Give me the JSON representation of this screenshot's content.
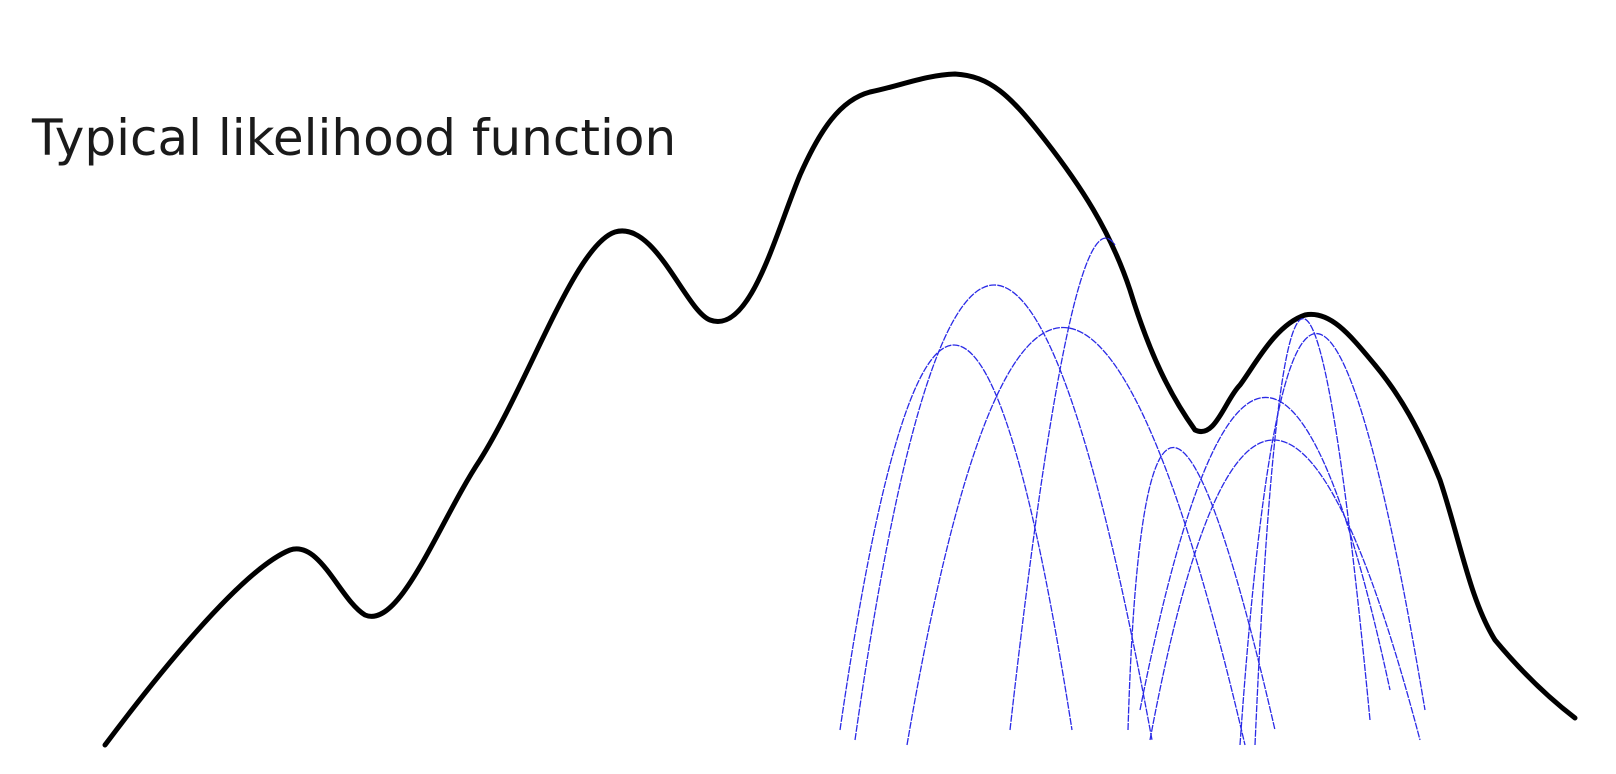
{
  "title": "Typical likelihood function",
  "colors": {
    "likelihood_curve": "#000000",
    "approximation_curves": "#2a2ae6",
    "background": "#ffffff"
  }
}
